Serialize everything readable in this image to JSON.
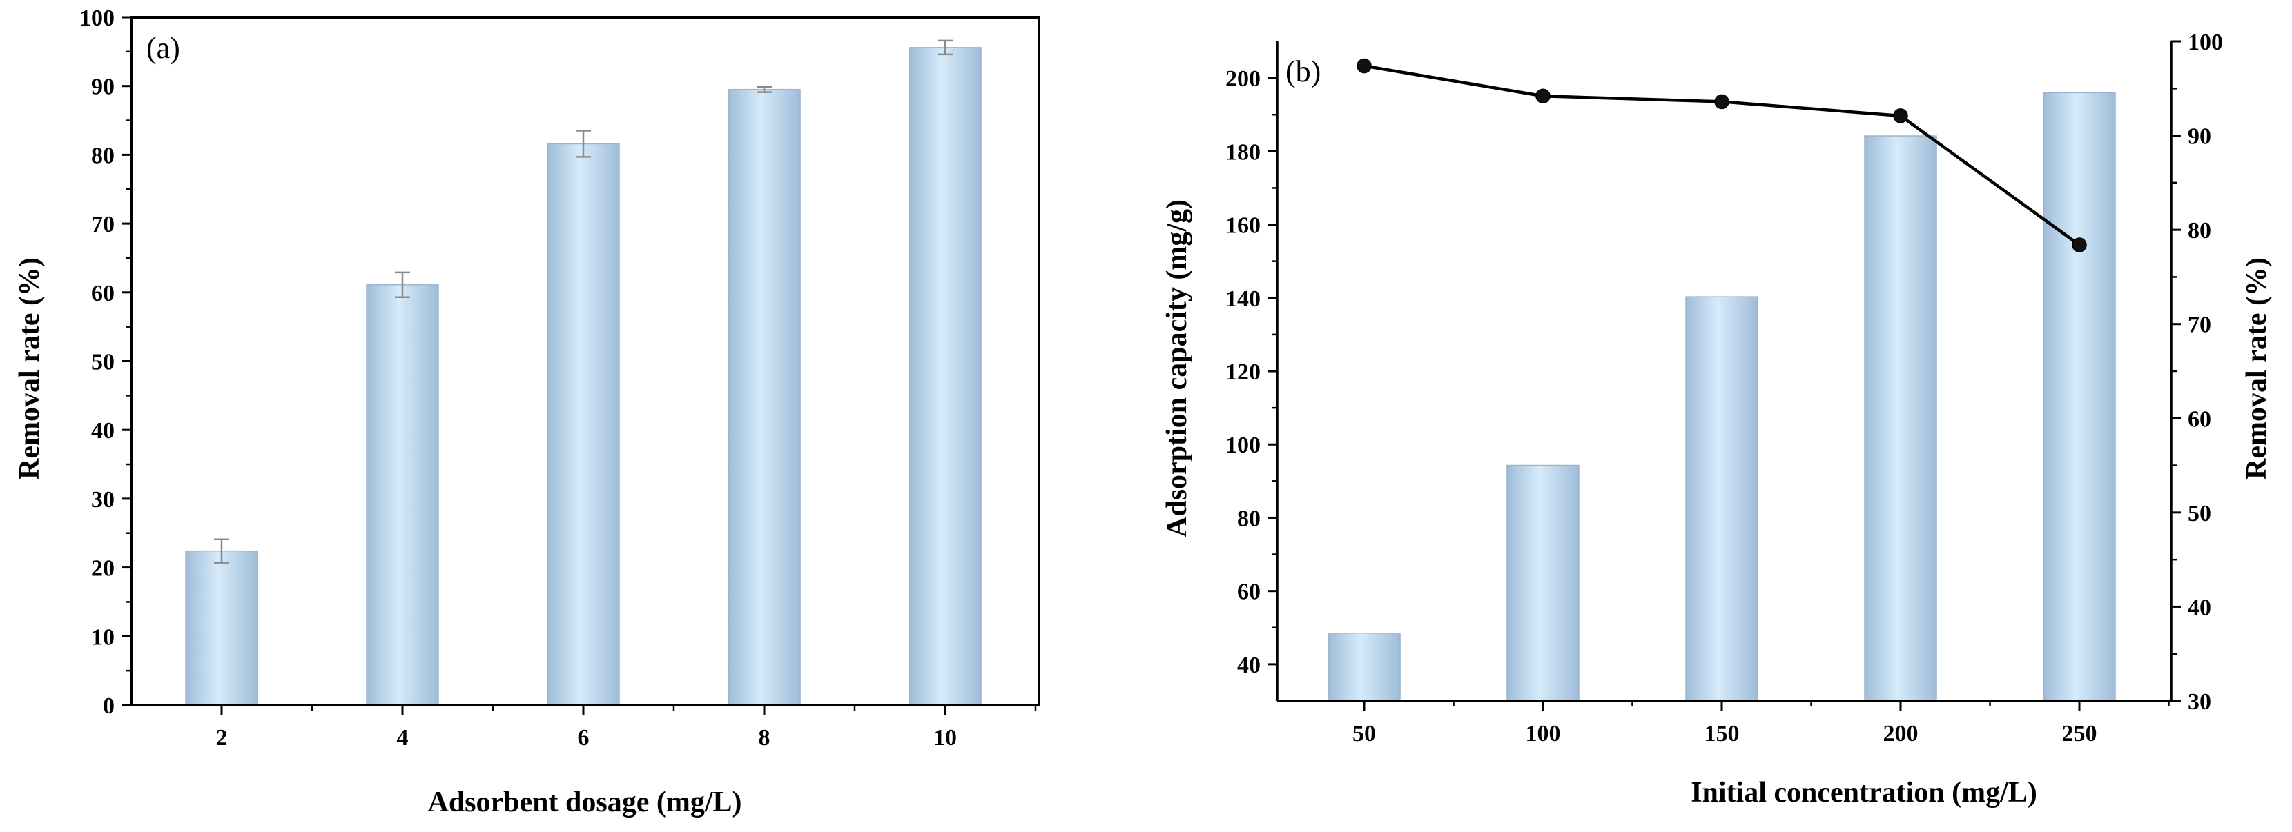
{
  "chart_data": [
    {
      "panel_label": "(a)",
      "type": "bar",
      "categories": [
        "2",
        "4",
        "6",
        "8",
        "10"
      ],
      "series": [
        {
          "values": [
            22.4,
            61.1,
            81.6,
            89.5,
            95.6
          ],
          "errors": [
            1.7,
            1.8,
            1.9,
            0.4,
            1.0
          ]
        }
      ],
      "xlabel": "Adsorbent dosage (mg/L)",
      "ylabel": "Removal rate (%)",
      "ylim": [
        0,
        100
      ],
      "yticks": [
        0,
        10,
        20,
        30,
        40,
        50,
        60,
        70,
        80,
        90,
        100
      ],
      "grid": false,
      "bar_color": "#bcd8f0"
    },
    {
      "panel_label": "(b)",
      "type": "bar",
      "categories": [
        "50",
        "100",
        "150",
        "200",
        "250"
      ],
      "series": [
        {
          "kind": "bar",
          "axis": "left",
          "values": [
            48.5,
            94.3,
            140.3,
            184.2,
            196.0
          ]
        },
        {
          "kind": "line",
          "axis": "right",
          "values": [
            97.4,
            94.2,
            93.6,
            92.1,
            78.4
          ]
        }
      ],
      "xlabel": "Initial concentration (mg/L)",
      "ylabel": "Adsorption capacity (mg/g)",
      "ylabel_right": "Removal rate (%)",
      "ylim": [
        30,
        210
      ],
      "yticks": [
        40,
        60,
        80,
        100,
        120,
        140,
        160,
        180,
        200
      ],
      "ylim_right": [
        30,
        100
      ],
      "yticks_right": [
        30,
        40,
        50,
        60,
        70,
        80,
        90,
        100
      ],
      "grid": false,
      "bar_color": "#bcd8f0",
      "line_color": "#000000"
    }
  ]
}
